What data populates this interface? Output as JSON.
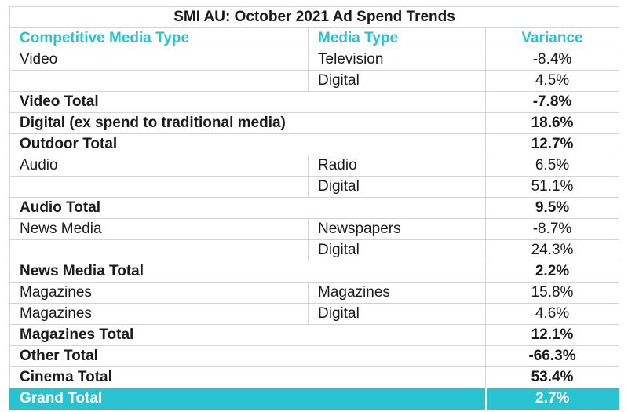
{
  "title": "SMI AU: October 2021 Ad Spend Trends",
  "headers": {
    "competitive_media_type": "Competitive Media Type",
    "media_type": "Media Type",
    "variance": "Variance"
  },
  "rows": [
    {
      "competitive": "Video",
      "media": "Television",
      "variance": "-8.4%"
    },
    {
      "competitive": "",
      "media": "Digital",
      "variance": "4.5%"
    },
    {
      "label": "Video Total",
      "variance": "-7.8%"
    },
    {
      "label": "Digital (ex spend to traditional media)",
      "variance": "18.6%"
    },
    {
      "label": "Outdoor Total",
      "variance": "12.7%"
    },
    {
      "competitive": "Audio",
      "media": "Radio",
      "variance": "6.5%"
    },
    {
      "competitive": "",
      "media": "Digital",
      "variance": "51.1%"
    },
    {
      "label": "Audio Total",
      "variance": "9.5%"
    },
    {
      "competitive": "News Media",
      "media": "Newspapers",
      "variance": "-8.7%"
    },
    {
      "competitive": "",
      "media": "Digital",
      "variance": "24.3%"
    },
    {
      "label": "News Media Total",
      "variance": "2.2%"
    },
    {
      "competitive": "Magazines",
      "media": "Magazines",
      "variance": "15.8%"
    },
    {
      "competitive": "Magazines",
      "media": "Digital",
      "variance": "4.6%"
    },
    {
      "label": "Magazines Total",
      "variance": "12.1%"
    },
    {
      "label": "Other Total",
      "variance": "-66.3%"
    },
    {
      "label": "Cinema Total",
      "variance": "53.4%"
    }
  ],
  "grand_total": {
    "label": "Grand Total",
    "variance": "2.7%"
  },
  "colors": {
    "accent": "#29c2d1",
    "text": "#1a1a1a",
    "grid": "#d4d4d4"
  }
}
